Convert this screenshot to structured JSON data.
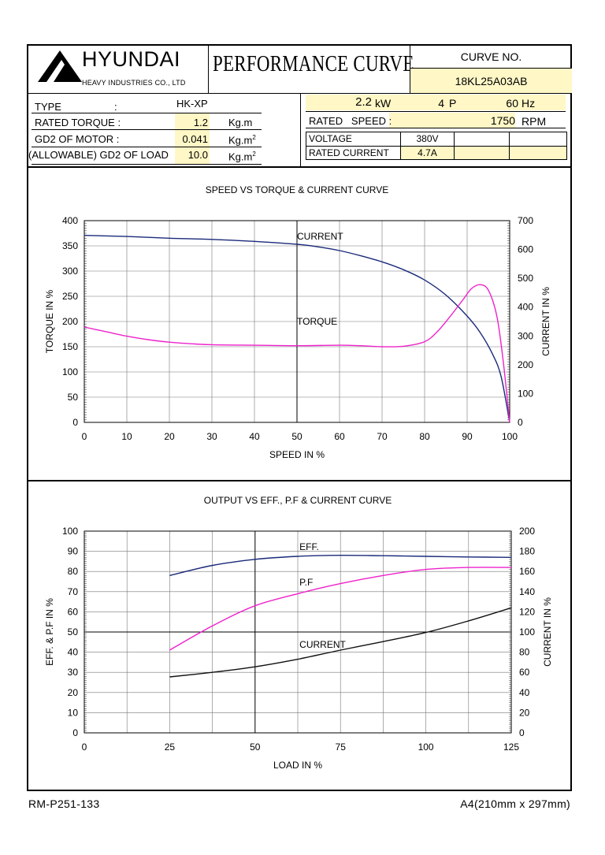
{
  "header": {
    "logo_name": "HYUNDAI",
    "logo_sub": "HEAVY INDUSTRIES CO., LTD",
    "title": "PERFORMANCE CURVE",
    "curve_no_label": "CURVE NO.",
    "curve_no": "18KL25A03AB"
  },
  "specs": {
    "type_label": "TYPE",
    "type_colon": ":",
    "type_value": "HK-XP",
    "rated_torque_label": "RATED TORQUE :",
    "rated_torque_value": "1.2",
    "rated_torque_unit": "Kg.m",
    "gd2_motor_label": "GD2 OF MOTOR :",
    "gd2_motor_value": "0.041",
    "gd2_motor_unit": "Kg.m",
    "gd2_load_label": "(ALLOWABLE) GD2 OF LOAD",
    "gd2_load_value": "10.0",
    "gd2_load_unit": "Kg.m",
    "sup2": "2",
    "power_value": "2.2",
    "power_unit": "kW",
    "poles_value": "4",
    "poles_unit": "P",
    "freq_value": "60",
    "freq_unit": "Hz",
    "rated_speed_label": "RATED   SPEED :",
    "rated_speed_value": "1750",
    "rated_speed_unit": "RPM",
    "voltage_label": "VOLTAGE",
    "voltage_value": "380V",
    "rated_current_label": "RATED CURRENT",
    "rated_current_value": "4.7A"
  },
  "footer": {
    "left": "RM-P251-133",
    "right": "A4(210mm x 297mm)"
  },
  "colors": {
    "current": "#1a2a7a",
    "torque": "#ee22cc",
    "black_curve": "#111111",
    "highlight": "#fff7c6"
  },
  "chart_data": [
    {
      "type": "line",
      "title": "SPEED VS TORQUE & CURRENT CURVE",
      "xlabel": "SPEED IN %",
      "ylabel": "TORQUE IN %",
      "y2label": "CURRENT IN %",
      "xlim": [
        0,
        100
      ],
      "ylim": [
        0,
        400
      ],
      "y2lim": [
        0,
        700
      ],
      "xticks": [
        0,
        10,
        20,
        30,
        40,
        50,
        60,
        70,
        80,
        90,
        100
      ],
      "yticks": [
        0,
        50,
        100,
        150,
        200,
        250,
        300,
        350,
        400
      ],
      "y2ticks": [
        0,
        100,
        200,
        300,
        400,
        500,
        600,
        700
      ],
      "grid": true,
      "series": [
        {
          "name": "CURRENT",
          "axis": "right",
          "color": "#1a2a7a",
          "points": [
            [
              0,
              649
            ],
            [
              10,
              645
            ],
            [
              20,
              639
            ],
            [
              30,
              635
            ],
            [
              40,
              628
            ],
            [
              50,
              618
            ],
            [
              55,
              609
            ],
            [
              60,
              596
            ],
            [
              65,
              578
            ],
            [
              70,
              557
            ],
            [
              75,
              530
            ],
            [
              80,
              494
            ],
            [
              85,
              442
            ],
            [
              90,
              369
            ],
            [
              93,
              313
            ],
            [
              96,
              236
            ],
            [
              98,
              158
            ],
            [
              100,
              0
            ]
          ]
        },
        {
          "name": "TORQUE",
          "axis": "left",
          "color": "#ee22cc",
          "points": [
            [
              0,
              189
            ],
            [
              5,
              180
            ],
            [
              10,
              171
            ],
            [
              15,
              164
            ],
            [
              20,
              159
            ],
            [
              25,
              156
            ],
            [
              30,
              154
            ],
            [
              40,
              153
            ],
            [
              50,
              152
            ],
            [
              60,
              153
            ],
            [
              65,
              152
            ],
            [
              70,
              150
            ],
            [
              75,
              151
            ],
            [
              80,
              160
            ],
            [
              83,
              180
            ],
            [
              86,
              210
            ],
            [
              89,
              243
            ],
            [
              91,
              265
            ],
            [
              93,
              273
            ],
            [
              95,
              262
            ],
            [
              97,
              210
            ],
            [
              98.5,
              120
            ],
            [
              100,
              0
            ]
          ]
        }
      ]
    },
    {
      "type": "line",
      "title": "OUTPUT VS EFF., P.F & CURRENT CURVE",
      "xlabel": "LOAD IN %",
      "ylabel": "EFF. & P.F IN %",
      "y2label": "CURRENT IN %",
      "xlim": [
        0,
        125
      ],
      "ylim": [
        0,
        100
      ],
      "y2lim": [
        0,
        200
      ],
      "xticks": [
        0,
        25,
        50,
        75,
        100,
        125
      ],
      "yticks": [
        0,
        10,
        20,
        30,
        40,
        50,
        60,
        70,
        80,
        90,
        100
      ],
      "y2ticks": [
        0,
        20,
        40,
        60,
        80,
        100,
        120,
        140,
        160,
        180,
        200
      ],
      "grid": true,
      "series": [
        {
          "name": "EFF.",
          "axis": "left",
          "color": "#1a2a7a",
          "points": [
            [
              25,
              78
            ],
            [
              37.5,
              83
            ],
            [
              50,
              86
            ],
            [
              62.5,
              87.5
            ],
            [
              75,
              88
            ],
            [
              87.5,
              87.8
            ],
            [
              100,
              87.5
            ],
            [
              112.5,
              87.2
            ],
            [
              125,
              87
            ]
          ]
        },
        {
          "name": "P.F",
          "axis": "left",
          "color": "#ee22cc",
          "points": [
            [
              25,
              41
            ],
            [
              37.5,
              53
            ],
            [
              50,
              63
            ],
            [
              62.5,
              69
            ],
            [
              75,
              74
            ],
            [
              87.5,
              78
            ],
            [
              100,
              81
            ],
            [
              112.5,
              82
            ],
            [
              125,
              82
            ]
          ]
        },
        {
          "name": "CURRENT",
          "axis": "right",
          "color": "#111111",
          "points": [
            [
              25,
              55.5
            ],
            [
              37.5,
              60
            ],
            [
              50,
              65.5
            ],
            [
              62.5,
              73
            ],
            [
              75,
              82
            ],
            [
              87.5,
              90.5
            ],
            [
              100,
              99.5
            ],
            [
              112.5,
              111
            ],
            [
              125,
              124
            ]
          ]
        }
      ]
    }
  ]
}
